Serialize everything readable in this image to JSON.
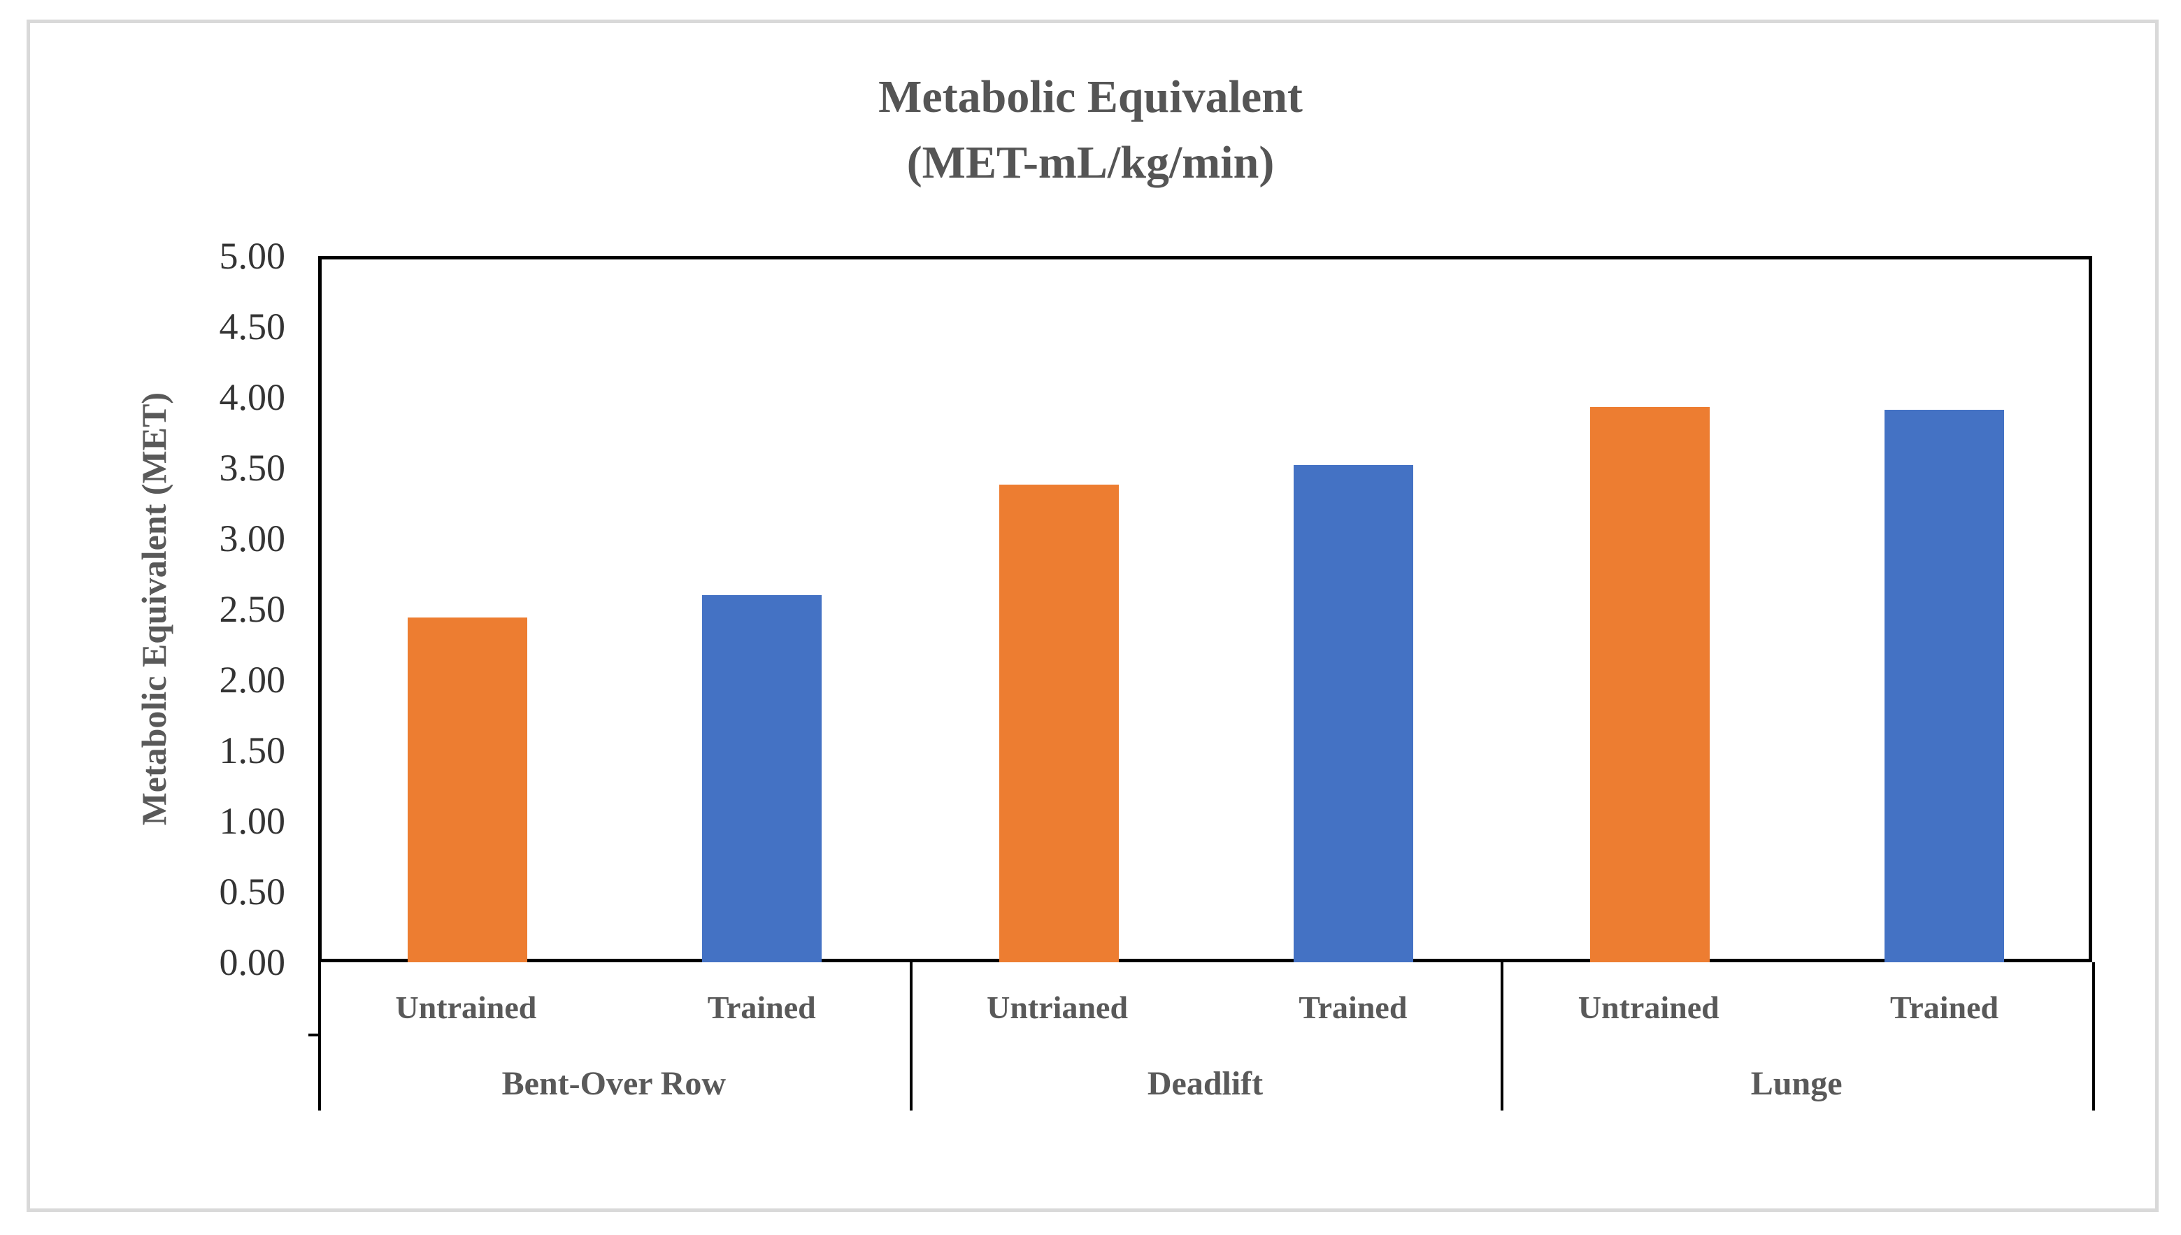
{
  "chart_data": {
    "type": "bar",
    "title": "Metabolic Equivalent",
    "subtitle": "(MET-mL/kg/min)",
    "ylabel": "Metabolic Equivalent (MET)",
    "xlabel": "",
    "ylim": [
      0,
      5
    ],
    "ytick_step": 0.5,
    "ytick_labels": [
      "5.00",
      "4.50",
      "4.00",
      "3.50",
      "3.00",
      "2.50",
      "2.00",
      "1.50",
      "1.00",
      "0.50",
      "0.00"
    ],
    "grid": false,
    "legend_position": "none",
    "categories": [
      "Bent-Over Row",
      "Deadlift",
      "Lunge"
    ],
    "groups": [
      {
        "label": "Bent-Over Row",
        "bars": [
          {
            "label": "Untrained",
            "series": "Untrained",
            "value": 2.44,
            "color": "#ED7D31"
          },
          {
            "label": "Trained",
            "series": "Trained",
            "value": 2.6,
            "color": "#4472C4"
          }
        ]
      },
      {
        "label": "Deadlift",
        "bars": [
          {
            "label": "Untrianed",
            "series": "Untrained",
            "value": 3.38,
            "color": "#ED7D31"
          },
          {
            "label": "Trained",
            "series": "Trained",
            "value": 3.52,
            "color": "#4472C4"
          }
        ]
      },
      {
        "label": "Lunge",
        "bars": [
          {
            "label": "Untrained",
            "series": "Untrained",
            "value": 3.93,
            "color": "#ED7D31"
          },
          {
            "label": "Trained",
            "series": "Trained",
            "value": 3.91,
            "color": "#4472C4"
          }
        ]
      }
    ]
  },
  "colors": {
    "untrained_bar": "#ED7D31",
    "trained_bar": "#4472C4",
    "axis_line": "#000000",
    "chart_frame": "#D9D9D9",
    "text": "#595959"
  }
}
